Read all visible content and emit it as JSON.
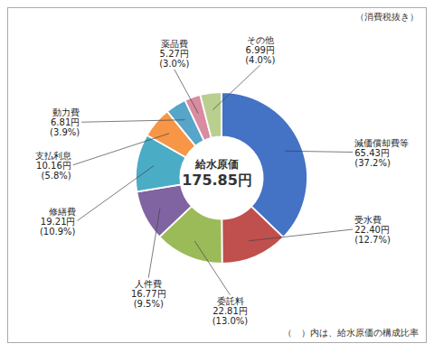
{
  "chart_data": {
    "type": "donut",
    "title": "（消費税抜き）",
    "center_labels": [
      "給水原価",
      "175.85円"
    ],
    "footer": "（　）内は、給水原価の構成比率",
    "categories": [
      "減価償却費等",
      "受水費",
      "委託料",
      "人件費",
      "修繕費",
      "支払利息",
      "動力費",
      "薬品費",
      "その他"
    ],
    "values": [
      37.2,
      12.7,
      13.0,
      9.5,
      10.9,
      5.8,
      3.9,
      3.0,
      4.0
    ],
    "value_labels": [
      "(37.2%)",
      "(12.7%)",
      "(13.0%)",
      "(9.5%)",
      "(10.9%)",
      "(5.8%)",
      "(3.9%)",
      "(3.0%)",
      "(4.0%)"
    ],
    "amount_labels": [
      "65.43円",
      "22.40円",
      "22.81円",
      "16.77円",
      "19.21円",
      "10.16円",
      "6.81円",
      "5.27円",
      "6.99円"
    ],
    "colors": [
      "#4472C4",
      "#C0504D",
      "#9BBB59",
      "#8064A2",
      "#4BACC6",
      "#F79646",
      "#57A5C8",
      "#D98CA0",
      "#B8CF8E"
    ]
  }
}
